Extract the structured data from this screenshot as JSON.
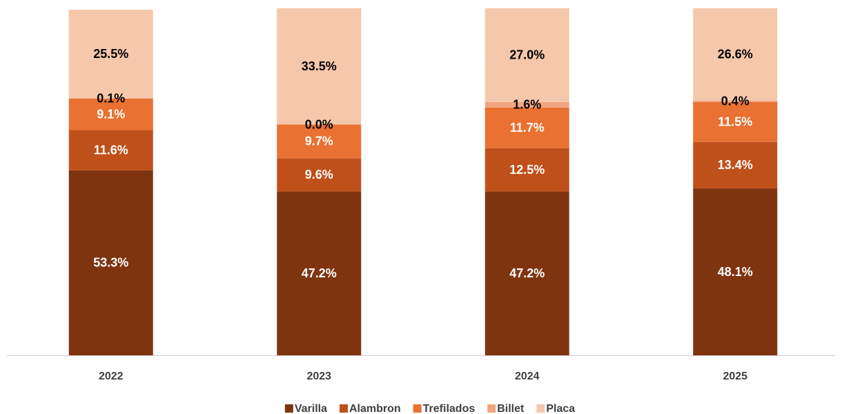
{
  "chart_data": {
    "type": "stacked_bar",
    "categories": [
      "2022",
      "2023",
      "2024",
      "2025"
    ],
    "series": [
      {
        "name": "Varilla",
        "color": "#7f3410",
        "values": [
          53.3,
          47.2,
          47.2,
          48.1
        ],
        "value_labels": [
          "53.3%",
          "47.2%",
          "47.2%",
          "48.1%"
        ]
      },
      {
        "name": "Alambron",
        "color": "#c0501a",
        "values": [
          11.6,
          9.6,
          12.5,
          13.4
        ],
        "value_labels": [
          "11.6%",
          "9.6%",
          "12.5%",
          "13.4%"
        ]
      },
      {
        "name": "Trefilados",
        "color": "#e97132",
        "values": [
          9.1,
          9.7,
          11.7,
          11.5
        ],
        "value_labels": [
          "9.1%",
          "9.7%",
          "11.7%",
          "11.5%"
        ]
      },
      {
        "name": "Billet",
        "color": "#f0a57e",
        "values": [
          0.1,
          0.0,
          1.6,
          0.4
        ],
        "value_labels": [
          "0.1%",
          "0.0%",
          "1.6%",
          "0.4%"
        ]
      },
      {
        "name": "Placa",
        "color": "#f5c7ab",
        "values": [
          25.5,
          33.5,
          27.0,
          26.6
        ],
        "value_labels": [
          "25.5%",
          "33.5%",
          "27.0%",
          "26.6%"
        ]
      }
    ],
    "label_colors": [
      "#ffffff",
      "#ffffff",
      "#ffffff",
      "#000000",
      "#000000"
    ]
  }
}
